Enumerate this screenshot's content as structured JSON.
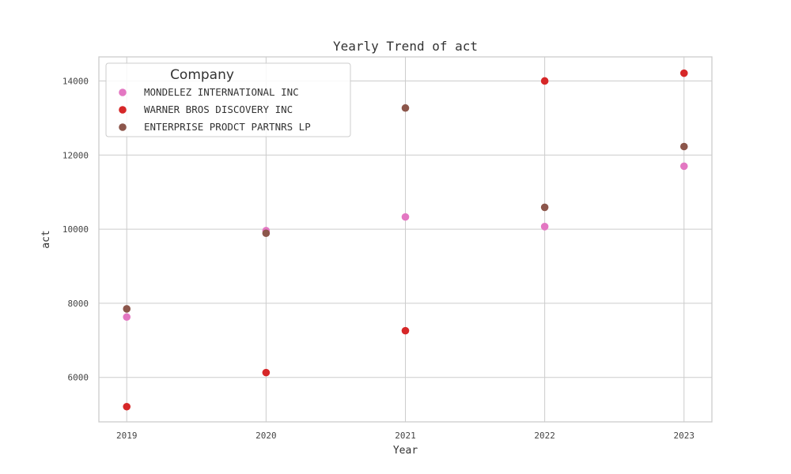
{
  "chart_data": {
    "type": "scatter",
    "title": "Yearly Trend of act",
    "xlabel": "Year",
    "ylabel": "act",
    "x": [
      2019,
      2020,
      2021,
      2022,
      2023
    ],
    "x_tick_labels": [
      "2019",
      "2020",
      "2021",
      "2022",
      "2023"
    ],
    "xlim": [
      2018.8,
      2023.2
    ],
    "ylim": [
      4800,
      14650
    ],
    "y_ticks": [
      6000,
      8000,
      10000,
      12000,
      14000
    ],
    "y_tick_labels": [
      "6000",
      "8000",
      "10000",
      "12000",
      "14000"
    ],
    "grid": true,
    "legend": {
      "title": "Company",
      "placement": "top-left"
    },
    "series": [
      {
        "name": "MONDELEZ INTERNATIONAL INC",
        "color": "#e377c2",
        "values": [
          7630,
          9960,
          10330,
          10070,
          11700
        ]
      },
      {
        "name": "WARNER BROS DISCOVERY INC",
        "color": "#d62728",
        "values": [
          5210,
          6130,
          7260,
          14000,
          14210
        ]
      },
      {
        "name": "ENTERPRISE PRODCT PARTNRS LP",
        "color": "#8c564b",
        "values": [
          7850,
          9890,
          13270,
          10590,
          12230
        ]
      }
    ]
  }
}
